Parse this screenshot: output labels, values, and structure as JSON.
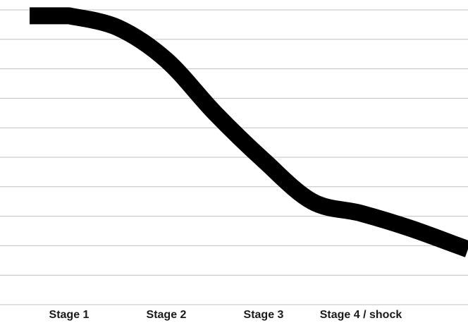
{
  "chart_data": {
    "type": "line",
    "title": "",
    "xlabel": "",
    "ylabel": "",
    "categories": [
      "Stage 1",
      "Stage 2",
      "Stage 3",
      "Stage 4  / shock"
    ],
    "x": [
      0,
      0.5,
      1,
      1.5,
      2,
      2.5,
      3,
      3.5,
      4
    ],
    "series": [
      {
        "values": [
          9.8,
          9.4,
          8.3,
          6.5,
          4.9,
          3.5,
          3.1,
          2.6,
          2.0
        ]
      }
    ],
    "ylim": [
      0,
      10
    ],
    "grid": true,
    "legend": "none",
    "line_color": "#000000",
    "grid_color": "#bfbfbf"
  }
}
